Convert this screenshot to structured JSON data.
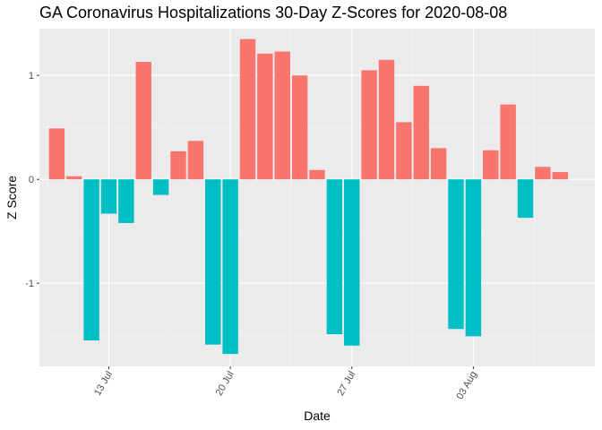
{
  "chart_data": {
    "type": "bar",
    "title": "GA Coronavirus Hospitalizations 30-Day Z-Scores for 2020-08-08",
    "xlabel": "Date",
    "ylabel": "Z Score",
    "x_tick_labels": [
      "13 Jul",
      "20 Jul",
      "27 Jul",
      "03 Aug"
    ],
    "x_tick_dates": [
      "2020-07-13",
      "2020-07-20",
      "2020-07-27",
      "2020-08-03"
    ],
    "y_ticks": [
      -1,
      0,
      1
    ],
    "ylim": [
      -1.8,
      1.45
    ],
    "xlim": [
      "2020-07-09",
      "2020-08-10"
    ],
    "grid": true,
    "dates": [
      "2020-07-10",
      "2020-07-11",
      "2020-07-12",
      "2020-07-13",
      "2020-07-14",
      "2020-07-15",
      "2020-07-16",
      "2020-07-17",
      "2020-07-18",
      "2020-07-19",
      "2020-07-20",
      "2020-07-21",
      "2020-07-22",
      "2020-07-23",
      "2020-07-24",
      "2020-07-25",
      "2020-07-26",
      "2020-07-27",
      "2020-07-28",
      "2020-07-29",
      "2020-07-30",
      "2020-07-31",
      "2020-08-01",
      "2020-08-02",
      "2020-08-03",
      "2020-08-04",
      "2020-08-05",
      "2020-08-06",
      "2020-08-07",
      "2020-08-08"
    ],
    "values": [
      0.49,
      0.03,
      -1.55,
      -0.33,
      -0.42,
      1.13,
      -0.15,
      0.27,
      0.37,
      -1.59,
      -1.68,
      1.35,
      1.21,
      1.23,
      1.0,
      0.09,
      -1.49,
      -1.6,
      1.05,
      1.15,
      0.55,
      0.9,
      0.3,
      -1.44,
      -1.51,
      0.28,
      0.72,
      -0.37,
      0.12,
      0.07
    ],
    "colors": {
      "positive": "#F8766D",
      "negative": "#00BFC4",
      "panel": "#EBEBEB",
      "grid_major": "#FFFFFF",
      "grid_minor": "#F5F5F5"
    }
  }
}
